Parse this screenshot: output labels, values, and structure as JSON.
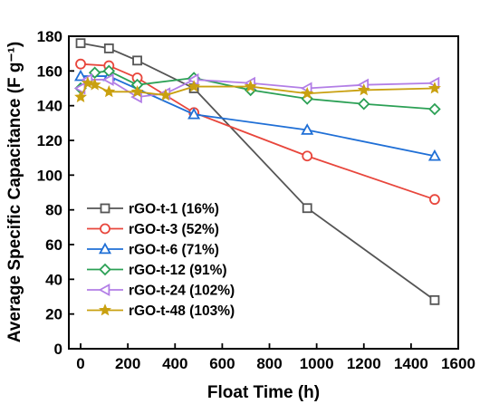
{
  "chart_data": {
    "type": "line",
    "xlabel": "Float Time (h)",
    "ylabel": "Average Specific Capacitance (F g⁻¹)",
    "xlim": [
      -50,
      1600
    ],
    "ylim": [
      0,
      180
    ],
    "xticks": [
      0,
      200,
      400,
      600,
      800,
      1000,
      1200,
      1400,
      1600
    ],
    "yticks": [
      0,
      20,
      40,
      60,
      80,
      100,
      120,
      140,
      160,
      180
    ],
    "grid": false,
    "legend_position": "bottom-left",
    "series": [
      {
        "name": "rGO-t-1 (16%)",
        "color": "#555555",
        "marker": "square",
        "x": [
          0,
          120,
          240,
          480,
          960,
          1500
        ],
        "y": [
          176,
          173,
          166,
          150,
          81,
          28
        ]
      },
      {
        "name": "rGO-t-3 (52%)",
        "color": "#e8463c",
        "marker": "circle",
        "x": [
          0,
          120,
          240,
          480,
          960,
          1500
        ],
        "y": [
          164,
          163,
          156,
          136,
          111,
          86
        ]
      },
      {
        "name": "rGO-t-6 (71%)",
        "color": "#1f6fd6",
        "marker": "triangle-up",
        "x": [
          0,
          120,
          480,
          960,
          1500
        ],
        "y": [
          157,
          157,
          135,
          126,
          111
        ]
      },
      {
        "name": "rGO-t-12 (91%)",
        "color": "#2ba055",
        "marker": "diamond",
        "x": [
          0,
          60,
          120,
          240,
          480,
          720,
          960,
          1200,
          1500
        ],
        "y": [
          150,
          159,
          160,
          152,
          156,
          149,
          144,
          141,
          138
        ]
      },
      {
        "name": "rGO-t-24 (102%)",
        "color": "#b27ee6",
        "marker": "triangle-left",
        "x": [
          0,
          30,
          120,
          240,
          360,
          480,
          720,
          960,
          1200,
          1500
        ],
        "y": [
          150,
          155,
          155,
          145,
          147,
          155,
          153,
          150,
          152,
          153
        ]
      },
      {
        "name": "rGO-t-48 (103%)",
        "color": "#c9a010",
        "marker": "star",
        "x": [
          0,
          30,
          60,
          120,
          240,
          360,
          480,
          720,
          960,
          1200,
          1500
        ],
        "y": [
          145,
          153,
          152,
          148,
          148,
          146,
          151,
          151,
          147,
          149,
          150
        ]
      }
    ]
  }
}
